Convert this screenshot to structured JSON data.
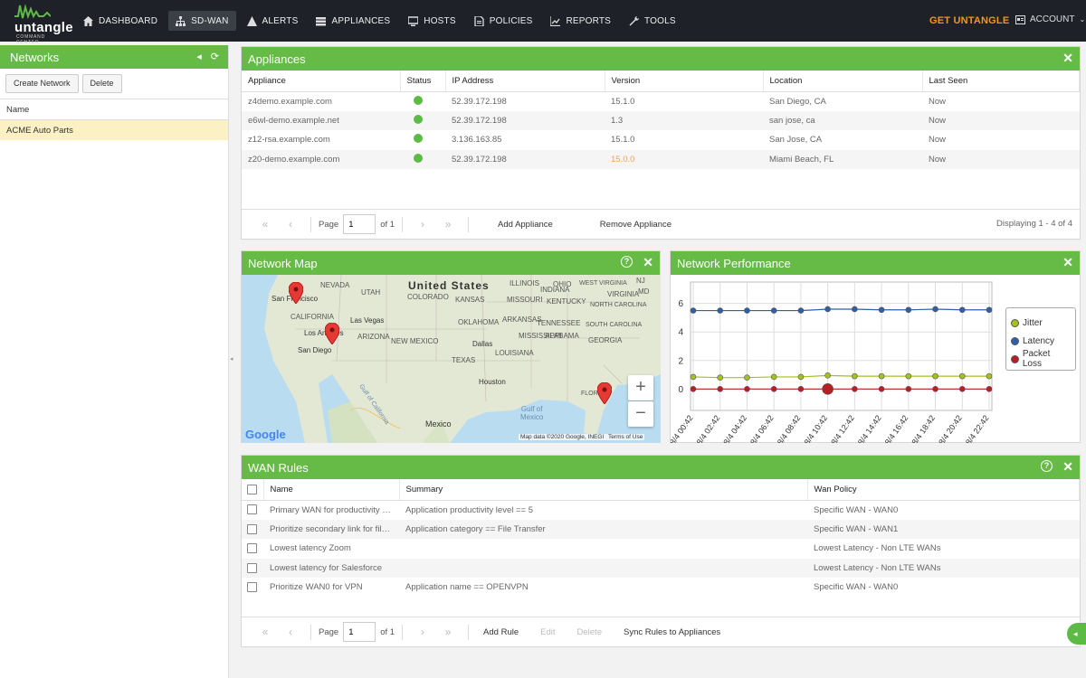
{
  "app": {
    "brand": "untangle",
    "brand_sub": "COMMAND CENTER",
    "get_label": "GET UNTANGLE",
    "account_label": "ACCOUNT"
  },
  "nav": [
    {
      "label": "DASHBOARD",
      "icon": "home-icon",
      "active": false
    },
    {
      "label": "SD-WAN",
      "icon": "sitemap-icon",
      "active": true
    },
    {
      "label": "ALERTS",
      "icon": "warning-icon",
      "active": false
    },
    {
      "label": "APPLIANCES",
      "icon": "server-icon",
      "active": false
    },
    {
      "label": "HOSTS",
      "icon": "monitor-icon",
      "active": false
    },
    {
      "label": "POLICIES",
      "icon": "document-icon",
      "active": false
    },
    {
      "label": "REPORTS",
      "icon": "chart-icon",
      "active": false
    },
    {
      "label": "TOOLS",
      "icon": "wrench-icon",
      "active": false
    }
  ],
  "sidebar": {
    "title": "Networks",
    "create_label": "Create Network",
    "delete_label": "Delete",
    "col_name": "Name",
    "rows": [
      "ACME Auto Parts"
    ]
  },
  "appliances": {
    "title": "Appliances",
    "columns": [
      "Appliance",
      "Status",
      "IP Address",
      "Version",
      "Location",
      "Last Seen"
    ],
    "rows": [
      {
        "appliance": "z4demo.example.com",
        "status": "online",
        "ip": "52.39.172.198",
        "version": "15.1.0",
        "version_outdated": false,
        "location": "San Diego, CA",
        "last_seen": "Now"
      },
      {
        "appliance": "e6wl-demo.example.net",
        "status": "online",
        "ip": "52.39.172.198",
        "version": "1.3",
        "version_outdated": false,
        "location": "san jose, ca",
        "last_seen": "Now"
      },
      {
        "appliance": "z12-rsa.example.com",
        "status": "online",
        "ip": "3.136.163.85",
        "version": "15.1.0",
        "version_outdated": false,
        "location": "San Jose, CA",
        "last_seen": "Now"
      },
      {
        "appliance": "z20-demo.example.com",
        "status": "online",
        "ip": "52.39.172.198",
        "version": "15.0.0",
        "version_outdated": true,
        "location": "Miami Beach, FL",
        "last_seen": "Now"
      }
    ],
    "pager": {
      "page_label": "Page",
      "page_value": "1",
      "of_label": "of 1",
      "add_label": "Add Appliance",
      "remove_label": "Remove Appliance",
      "display_text": "Displaying 1 - 4 of 4"
    }
  },
  "network_map": {
    "title": "Network Map",
    "labels": {
      "country_us": "United States",
      "mexico": "Mexico",
      "gulf": "Gulf of\nMexico",
      "san_francisco": "San Francisco",
      "los_angeles": "Los Angeles",
      "las_vegas": "Las Vegas",
      "san_diego": "San Diego",
      "dallas": "Dallas",
      "houston": "Houston",
      "nevada": "NEVADA",
      "utah": "UTAH",
      "colorado": "COLORADO",
      "kansas": "KANSAS",
      "missouri": "MISSOURI",
      "california": "CALIFORNIA",
      "arizona": "ARIZONA",
      "new_mexico": "NEW MEXICO",
      "oklahoma": "OKLAHOMA",
      "texas": "TEXAS",
      "tennessee": "TENNESSEE",
      "georgia": "GEORGIA",
      "florida": "FLORIDA",
      "gulf_of_california": "Gulf of California",
      "ohio": "OHIO",
      "wv": "WEST VIRGINIA",
      "nj": "NJ",
      "md": "MD",
      "north_carolina": "NORTH CAROLINA",
      "south_carolina": "SOUTH CAROLINA",
      "kentucky": "KENTUCKY",
      "arkansas": "ARKANSAS",
      "mississippi": "MISSISSIPPI",
      "alabama": "ALABAMA",
      "louisiana": "LOUISIANA",
      "illinois": "ILLINOIS",
      "indiana": "INDIANA",
      "virginia": "VIRGINIA"
    },
    "google": "Google",
    "attribution": "Map data ©2020 Google, INEGI",
    "terms": "Terms of Use",
    "zoom_in": "+",
    "zoom_out": "−"
  },
  "network_performance": {
    "title": "Network Performance"
  },
  "chart_data": {
    "type": "line",
    "x": [
      "8/4 00:42",
      "8/4 02:42",
      "8/4 04:42",
      "8/4 06:42",
      "8/4 08:42",
      "8/4 10:42",
      "8/4 12:42",
      "8/4 14:42",
      "8/4 16:42",
      "8/4 18:42",
      "8/4 20:42",
      "8/4 22:42"
    ],
    "ylim": [
      -1.5,
      7.5
    ],
    "yticks": [
      0,
      2,
      4,
      6
    ],
    "grid": true,
    "legend_position": "right",
    "series": [
      {
        "name": "Jitter",
        "color": "#a3c21b",
        "values": [
          0.85,
          0.8,
          0.8,
          0.85,
          0.85,
          0.95,
          0.9,
          0.9,
          0.9,
          0.9,
          0.9,
          0.9
        ]
      },
      {
        "name": "Latency",
        "color": "#2f5fa8",
        "values": [
          5.5,
          5.5,
          5.5,
          5.5,
          5.5,
          5.6,
          5.6,
          5.55,
          5.55,
          5.6,
          5.55,
          5.55
        ]
      },
      {
        "name": "Packet Loss",
        "color": "#b61f24",
        "values": [
          0,
          0,
          0,
          0,
          0,
          0,
          0,
          0,
          0,
          0,
          0,
          0
        ]
      }
    ]
  },
  "wan_rules": {
    "title": "WAN Rules",
    "columns": [
      "Name",
      "Summary",
      "Wan Policy"
    ],
    "rows": [
      {
        "name": "Primary WAN for productivity a...",
        "summary": "Application productivity level == 5",
        "policy": "Specific WAN - WAN0"
      },
      {
        "name": "Prioritize secondary link for file...",
        "summary": "Application category == File Transfer",
        "policy": "Specific WAN - WAN1"
      },
      {
        "name": "Lowest latency Zoom",
        "summary": "",
        "policy": "Lowest Latency - Non LTE WANs"
      },
      {
        "name": "Lowest latency for Salesforce",
        "summary": "",
        "policy": "Lowest Latency - Non LTE WANs"
      },
      {
        "name": "Prioritize WAN0 for VPN",
        "summary": "Application name == OPENVPN",
        "policy": "Specific WAN - WAN0"
      }
    ],
    "pager": {
      "page_label": "Page",
      "page_value": "1",
      "of_label": "of 1",
      "add_label": "Add Rule",
      "edit_label": "Edit",
      "delete_label": "Delete",
      "sync_label": "Sync Rules to Appliances"
    }
  }
}
